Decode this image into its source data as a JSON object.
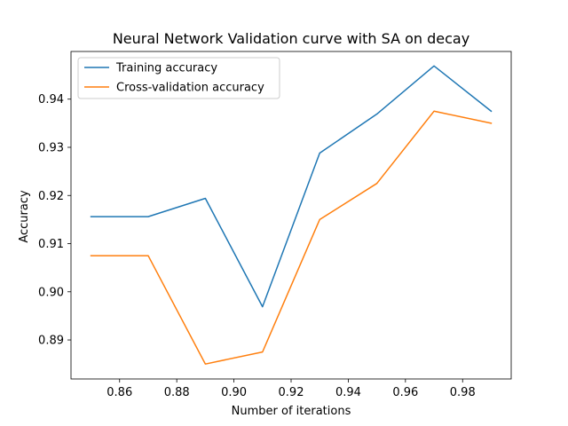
{
  "chart_data": {
    "type": "line",
    "title": "Neural Network Validation curve with SA on decay",
    "xlabel": "Number of iterations",
    "ylabel": "Accuracy",
    "x": [
      0.85,
      0.87,
      0.89,
      0.91,
      0.93,
      0.95,
      0.97,
      0.99
    ],
    "series": [
      {
        "name": "Training accuracy",
        "color": "#1f77b4",
        "values": [
          0.9156,
          0.9156,
          0.9194,
          0.8969,
          0.9288,
          0.9369,
          0.9469,
          0.9375
        ]
      },
      {
        "name": "Cross-validation accuracy",
        "color": "#ff7f0e",
        "values": [
          0.9075,
          0.9075,
          0.885,
          0.8875,
          0.915,
          0.9225,
          0.9375,
          0.935
        ]
      }
    ],
    "xlim": [
      0.843,
      0.997
    ],
    "ylim": [
      0.8819,
      0.9499
    ],
    "xticks": [
      0.86,
      0.88,
      0.9,
      0.92,
      0.94,
      0.96,
      0.98
    ],
    "xtick_labels": [
      "0.86",
      "0.88",
      "0.90",
      "0.92",
      "0.94",
      "0.96",
      "0.98"
    ],
    "yticks": [
      0.89,
      0.9,
      0.91,
      0.92,
      0.93,
      0.94
    ],
    "ytick_labels": [
      "0.89",
      "0.90",
      "0.91",
      "0.92",
      "0.93",
      "0.94"
    ],
    "grid": false,
    "legend_position": "upper-left"
  }
}
